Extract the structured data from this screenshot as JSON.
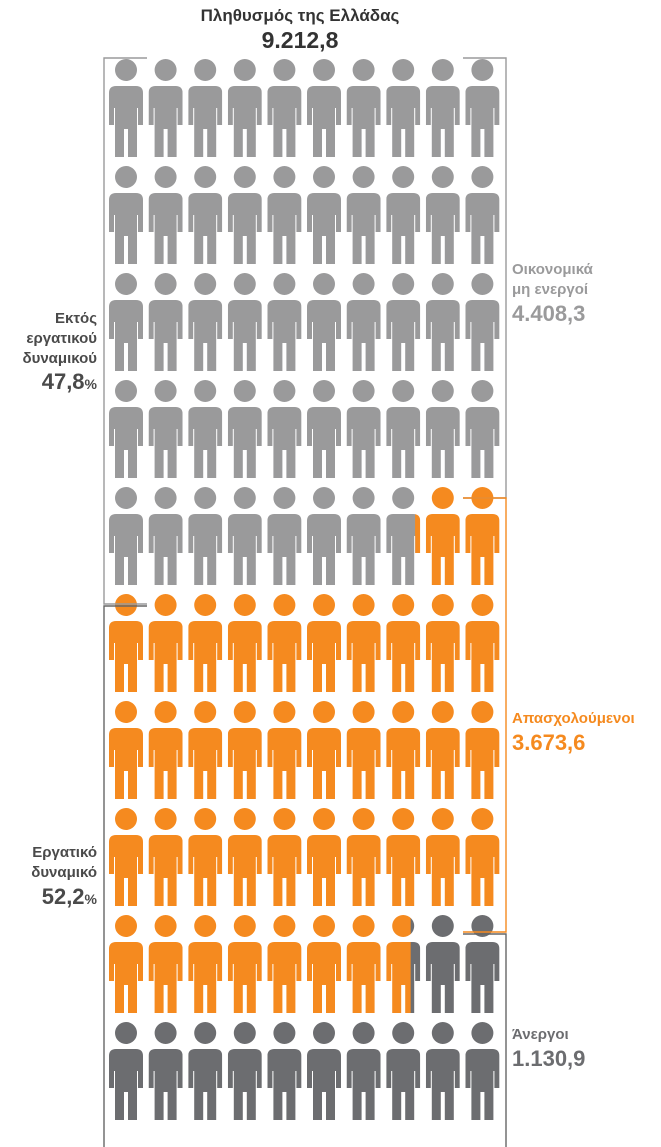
{
  "title": "Πληθυσμός της Ελλάδας",
  "total": "9.212,8",
  "colors": {
    "inactive": "#9a9a9b",
    "employed": "#f58a1f",
    "unemployed": "#6c6d70",
    "bracket_dark": "#666666"
  },
  "labels": {
    "outside": {
      "line1": "Εκτός",
      "line2": "εργατικού",
      "line3": "δυναμικού",
      "value": "47,8",
      "unit": "%"
    },
    "labor": {
      "line1": "Εργατικό",
      "line2": "δυναμικό",
      "value": "52,2",
      "unit": "%"
    },
    "inactive": {
      "line1": "Οικονομικά",
      "line2": "μη ενεργοί",
      "value": "4.408,3"
    },
    "employed": {
      "line1": "Απασχολούμενοι",
      "value": "3.673,6"
    },
    "unemployed": {
      "line1": "Άνεργοι",
      "value": "1.130,9"
    }
  },
  "chart_data": {
    "type": "pictograph",
    "title": "Πληθυσμός της Ελλάδας",
    "total": 9212.8,
    "grid": {
      "rows": 10,
      "columns": 10
    },
    "series": [
      {
        "name": "Οικονομικά μη ενεργοί",
        "value": 4408.3,
        "icons": 47.85,
        "color": "#9a9a9b"
      },
      {
        "name": "Απασχολούμενοι",
        "value": 3673.6,
        "icons": 39.87,
        "color": "#f58a1f"
      },
      {
        "name": "Άνεργοι",
        "value": 1130.9,
        "icons": 12.28,
        "color": "#6c6d70"
      }
    ],
    "groups": [
      {
        "name": "Εκτός εργατικού δυναμικού",
        "percent": 47.8
      },
      {
        "name": "Εργατικό δυναμικό",
        "percent": 52.2
      }
    ]
  }
}
